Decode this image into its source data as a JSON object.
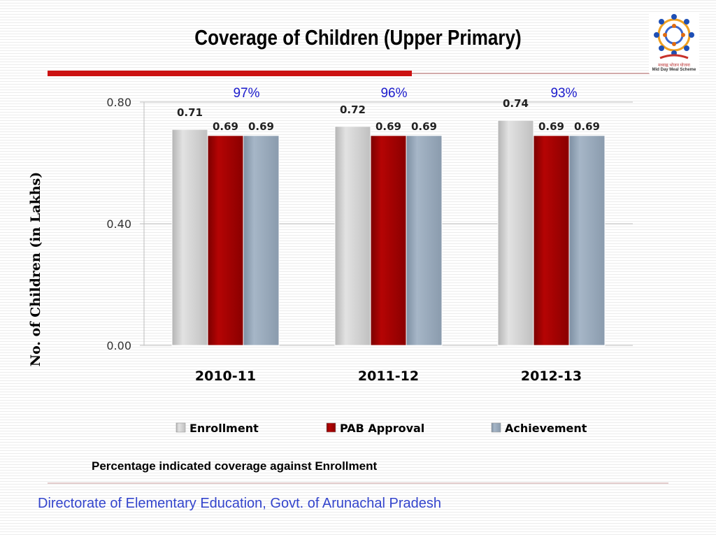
{
  "slide": {
    "title": "Coverage of Children  (Upper Primary)",
    "footnote": "Percentage indicated coverage against  Enrollment",
    "footer": "Directorate of Elementary Education, Govt. of Arunachal Pradesh",
    "logo": {
      "line1": "मध्याह्न भोजन योजना",
      "line2": "Mid Day Meal Scheme"
    }
  },
  "chart_data": {
    "type": "bar",
    "categories": [
      "2010-11",
      "2011-12",
      "2012-13"
    ],
    "series": [
      {
        "name": "Enrollment",
        "values": [
          0.71,
          0.72,
          0.74
        ],
        "value_labels": [
          "0.71",
          "0.72",
          "0.74"
        ],
        "color": "#d3d3d3"
      },
      {
        "name": "PAB Approval",
        "values": [
          0.69,
          0.69,
          0.69
        ],
        "value_labels": [
          "0.69",
          "0.69",
          "0.69"
        ],
        "color": "#a30000"
      },
      {
        "name": "Achievement",
        "values": [
          0.69,
          0.69,
          0.69
        ],
        "value_labels": [
          "0.69",
          "0.69",
          "0.69"
        ],
        "color": "#95a6b8"
      }
    ],
    "coverage_labels": [
      "97%",
      "96%",
      "93%"
    ],
    "coverage_color": "#1a1acc",
    "ylabel": "No. of Children (in Lakhs)",
    "ylim": [
      0,
      0.8
    ],
    "yticks": [
      0,
      0.4,
      0.8
    ],
    "ytick_labels": [
      "0.00",
      "0.40",
      "0.80"
    ],
    "grid": true,
    "legend_position": "bottom"
  }
}
